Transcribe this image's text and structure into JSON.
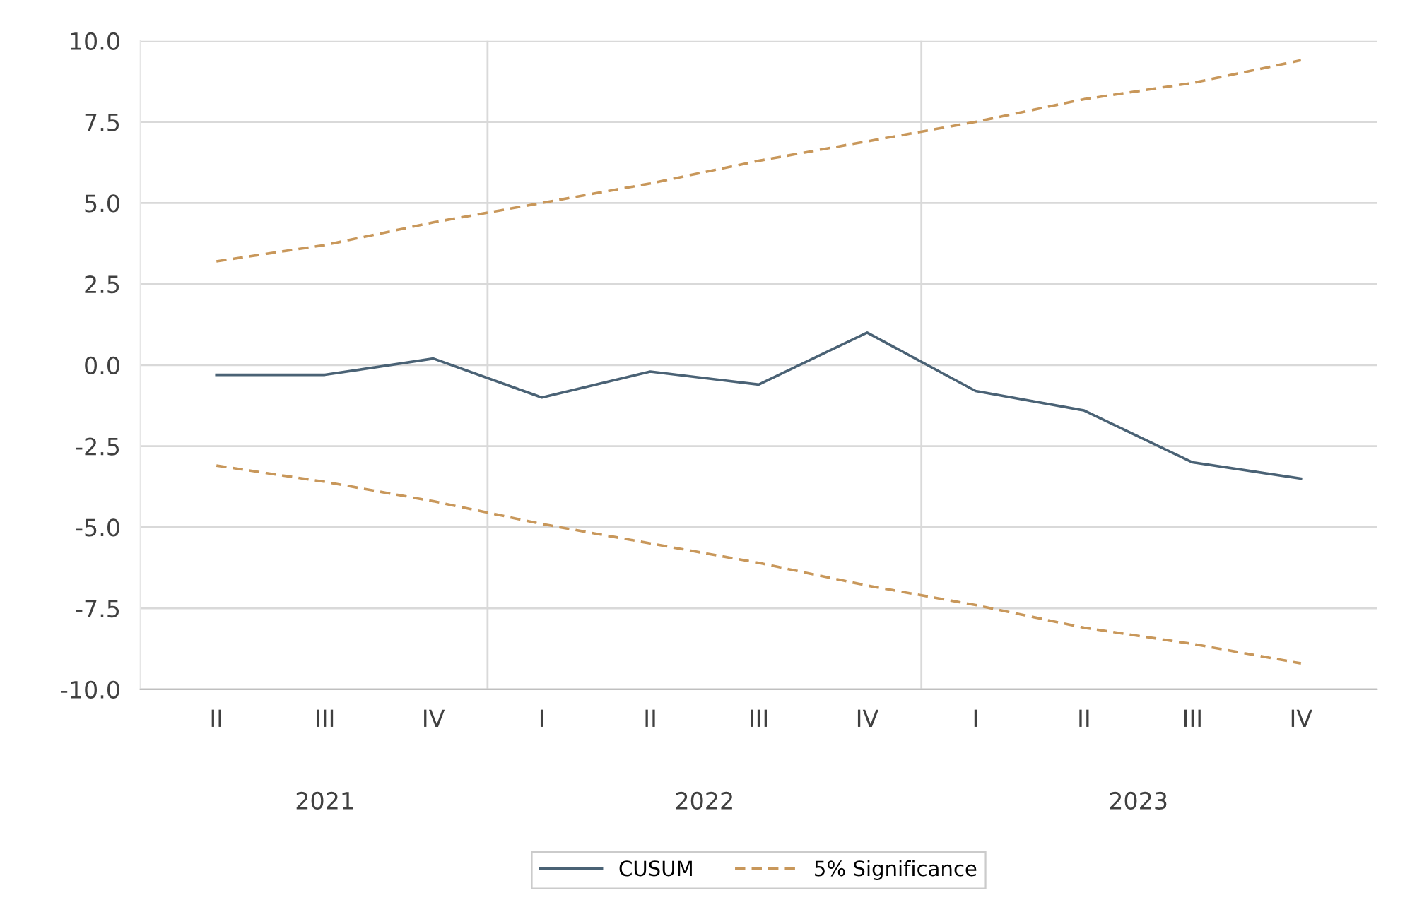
{
  "chart_data": {
    "type": "line",
    "categories": [
      "II",
      "III",
      "IV",
      "I",
      "II",
      "III",
      "IV",
      "I",
      "II",
      "III",
      "IV"
    ],
    "series": [
      {
        "name": "CUSUM",
        "color": "#4a6275",
        "line_style": "solid",
        "values": [
          -0.3,
          -0.3,
          0.2,
          -1.0,
          -0.2,
          -0.6,
          1.0,
          -0.8,
          -1.4,
          -3.0,
          -3.5
        ]
      },
      {
        "name": "5% Significance",
        "color": "#c8975a",
        "line_style": "dashed",
        "values": [
          3.2,
          3.7,
          4.4,
          5.0,
          5.6,
          6.3,
          6.9,
          7.5,
          8.2,
          8.7,
          9.4
        ]
      },
      {
        "color": "#c8975a",
        "line_style": "dashed",
        "values": [
          -3.1,
          -3.6,
          -4.2,
          -4.9,
          -5.5,
          -6.1,
          -6.8,
          -7.4,
          -8.1,
          -8.6,
          -9.2
        ]
      }
    ],
    "ylim": [
      -10,
      10
    ],
    "yticks": [
      {
        "value": -10,
        "label": "-10.0"
      },
      {
        "value": -7.5,
        "label": "-7.5"
      },
      {
        "value": -5,
        "label": "-5.0"
      },
      {
        "value": -2.5,
        "label": "-2.5"
      },
      {
        "value": 0,
        "label": "0.0"
      },
      {
        "value": 2.5,
        "label": "2.5"
      },
      {
        "value": 5,
        "label": "5.0"
      },
      {
        "value": 7.5,
        "label": "7.5"
      },
      {
        "value": 10,
        "label": "10.0"
      }
    ],
    "annotations": [
      "2021",
      "2022",
      "2023"
    ],
    "grid": "y",
    "legend": "bottom",
    "marker": "none"
  }
}
